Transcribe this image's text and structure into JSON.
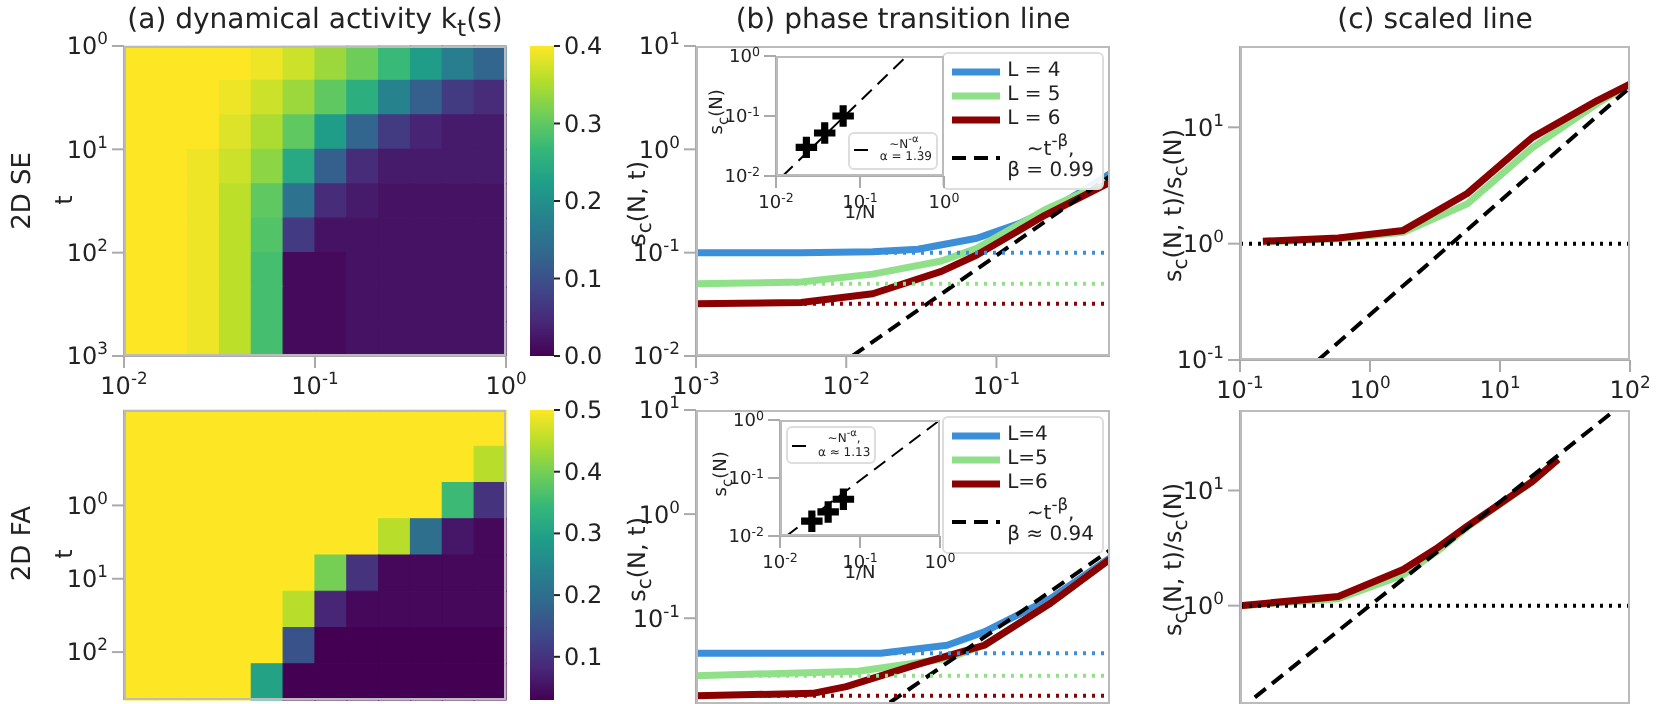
{
  "chart_data": [
    {
      "type": "heatmap",
      "title": "(a) dynamical activity k$_{t}$(s)",
      "ylabel": "t",
      "annotations": [
        "2D SE"
      ],
      "log": "xy",
      "xlim": [
        0.01,
        1
      ],
      "ylim": [
        1000,
        1
      ],
      "xticks": [
        {
          "value": 0.01,
          "label": "10$^{-2}$"
        },
        {
          "value": 0.1,
          "label": "10$^{-1}$"
        },
        {
          "value": 1,
          "label": "10$^{0}$"
        }
      ],
      "yticks": [
        {
          "value": 1,
          "label": "10$^{0}$"
        },
        {
          "value": 10,
          "label": "10$^{1}$"
        },
        {
          "value": 100,
          "label": "10$^{2}$"
        },
        {
          "value": 1000,
          "label": "10$^{3}$"
        }
      ],
      "cells": [
        [
          0.4,
          0.4,
          0.4,
          0.4,
          0.39,
          0.37,
          0.34,
          0.31,
          0.27,
          0.22,
          0.17,
          0.13
        ],
        [
          0.4,
          0.4,
          0.4,
          0.39,
          0.37,
          0.34,
          0.3,
          0.25,
          0.18,
          0.12,
          0.07,
          0.05
        ],
        [
          0.4,
          0.4,
          0.4,
          0.38,
          0.35,
          0.3,
          0.22,
          0.13,
          0.07,
          0.04,
          0.03,
          0.03
        ],
        [
          0.4,
          0.4,
          0.39,
          0.37,
          0.33,
          0.24,
          0.12,
          0.05,
          0.03,
          0.03,
          0.03,
          0.03
        ],
        [
          0.4,
          0.4,
          0.39,
          0.36,
          0.3,
          0.15,
          0.05,
          0.03,
          0.02,
          0.02,
          0.02,
          0.02
        ],
        [
          0.4,
          0.4,
          0.39,
          0.36,
          0.29,
          0.07,
          0.02,
          0.02,
          0.02,
          0.02,
          0.02,
          0.02
        ],
        [
          0.4,
          0.4,
          0.39,
          0.36,
          0.28,
          0.01,
          0.01,
          0.02,
          0.02,
          0.02,
          0.02,
          0.02
        ],
        [
          0.4,
          0.4,
          0.39,
          0.36,
          0.28,
          0.01,
          0.01,
          0.02,
          0.02,
          0.02,
          0.02,
          0.02
        ],
        [
          0.4,
          0.4,
          0.39,
          0.36,
          0.28,
          0.01,
          0.01,
          0.02,
          0.02,
          0.02,
          0.02,
          0.02
        ]
      ],
      "clim": [
        0,
        0.4
      ],
      "cticks": [
        {
          "value": 0,
          "label": "0.0"
        },
        0.1,
        0.2,
        0.3,
        0.4
      ]
    },
    {
      "type": "line",
      "title": "(b) phase transition line",
      "ylabel": "s$_{c}$(N, t)",
      "log": "xy",
      "xlim": [
        0.001,
        0.57
      ],
      "ylim": [
        0.01,
        10
      ],
      "xticks": [
        {
          "value": 0.001,
          "label": "10$^{-3}$"
        },
        {
          "value": 0.01,
          "label": "10$^{-2}$"
        },
        {
          "value": 0.1,
          "label": "10$^{-1}$"
        }
      ],
      "yticks": [
        {
          "value": 0.01,
          "label": "10$^{-2}$"
        },
        {
          "value": 0.1,
          "label": "10$^{-1}$"
        },
        {
          "value": 1,
          "label": "10$^{0}$"
        },
        {
          "value": 10,
          "label": "10$^{1}$"
        }
      ],
      "legend": "top right",
      "series": [
        {
          "name": "L = 4",
          "color": "#3b8fd9",
          "x": [
            0.001,
            0.005,
            0.015,
            0.03,
            0.074,
            0.14,
            0.25,
            0.4,
            0.57
          ],
          "values": [
            0.1,
            0.1,
            0.102,
            0.108,
            0.138,
            0.19,
            0.28,
            0.42,
            0.58
          ]
        },
        {
          "name": "L = 5",
          "color": "#90e08a",
          "x": [
            0.001,
            0.005,
            0.015,
            0.043,
            0.074,
            0.21,
            0.57
          ],
          "values": [
            0.05,
            0.052,
            0.062,
            0.083,
            0.11,
            0.26,
            0.5
          ]
        },
        {
          "name": "L = 6",
          "color": "#8b0000",
          "x": [
            0.001,
            0.005,
            0.015,
            0.043,
            0.074,
            0.21,
            0.57
          ],
          "values": [
            0.032,
            0.033,
            0.04,
            0.066,
            0.095,
            0.23,
            0.48
          ]
        },
        {
          "name": "~t$^{-β}$, β = 0.99",
          "color": "#000000",
          "line_style": "dashed",
          "x": [
            0.011,
            0.57
          ],
          "values": [
            0.01,
            0.55
          ]
        }
      ],
      "ref_lines": [
        {
          "axis": "y",
          "value": 0.1,
          "color": "#3b8fd9",
          "line_style": "dotted"
        },
        {
          "axis": "y",
          "value": 0.05,
          "color": "#90e08a",
          "line_style": "dotted"
        },
        {
          "axis": "y",
          "value": 0.032,
          "color": "#8b0000",
          "line_style": "dotted"
        }
      ]
    },
    {
      "type": "scatter",
      "xlabel": "1/N",
      "ylabel": "s$_{c}$(N)",
      "log": "xy",
      "xlim": [
        0.01,
        1
      ],
      "ylim": [
        0.01,
        1
      ],
      "legend": "bottom right",
      "xticks": [
        {
          "value": 0.01,
          "label": "10$^{-2}$"
        },
        {
          "value": 0.1,
          "label": "10$^{-1}$"
        },
        {
          "value": 1,
          "label": "10$^{0}$"
        }
      ],
      "yticks": [
        {
          "value": 0.01,
          "label": "10$^{-2}$"
        },
        {
          "value": 0.1,
          "label": "10$^{-1}$"
        },
        {
          "value": 1,
          "label": "10$^{0}$"
        }
      ],
      "series": [
        {
          "color": "#000000",
          "marker": "cross",
          "x": [
            0.023,
            0.038,
            0.063
          ],
          "values": [
            0.03,
            0.052,
            0.1
          ]
        },
        {
          "type": "line",
          "name": "~N$^{-α}$, α = 1.39",
          "color": "#000000",
          "line_style": "dashed",
          "x": [
            0.012,
            0.36
          ],
          "values": [
            0.01,
            1
          ]
        }
      ]
    },
    {
      "type": "line",
      "title": "(c) scaled line",
      "ylabel": "s$_{c}$(N, t)/s$_{c}$(N)",
      "log": "xy",
      "xlim": [
        0.1,
        100
      ],
      "ylim": [
        0.1,
        50
      ],
      "xticks": [
        {
          "value": 0.1,
          "label": "10$^{-1}$"
        },
        {
          "value": 1,
          "label": "10$^{0}$"
        },
        {
          "value": 10,
          "label": "10$^{1}$"
        },
        {
          "value": 100,
          "label": "10$^{2}$"
        }
      ],
      "yticks": [
        {
          "value": 0.1,
          "label": "10$^{-1}$"
        },
        {
          "value": 1,
          "label": "10$^{0}$"
        },
        {
          "value": 10,
          "label": "10$^{1}$"
        }
      ],
      "series": [
        {
          "color": "#90e08a",
          "x": [
            0.15,
            0.57,
            1.8,
            5.6,
            17.8,
            56,
            100
          ],
          "values": [
            1.03,
            1.1,
            1.25,
            2.2,
            6.7,
            16,
            23.5
          ]
        },
        {
          "color": "#8b0000",
          "x": [
            0.15,
            0.57,
            1.8,
            5.6,
            17.8,
            56,
            100
          ],
          "values": [
            1.05,
            1.12,
            1.3,
            2.7,
            8.2,
            17,
            23.5
          ]
        },
        {
          "color": "#000000",
          "line_style": "dashed",
          "x": [
            0.4,
            100
          ],
          "values": [
            0.1,
            22
          ]
        }
      ],
      "ref_lines": [
        {
          "axis": "y",
          "value": 1,
          "color": "#000000",
          "line_style": "dotted"
        }
      ]
    },
    {
      "type": "heatmap",
      "ylabel": "t",
      "annotations": [
        "2D FA"
      ],
      "log": "xy",
      "xlim": [
        0.01,
        1
      ],
      "ylim": [
        450,
        0.05
      ],
      "tick_labels": "y",
      "yticks": [
        {
          "value": 1,
          "label": "10$^{0}$"
        },
        {
          "value": 10,
          "label": "10$^{1}$"
        },
        {
          "value": 100,
          "label": "10$^{2}$"
        }
      ],
      "cells": [
        [
          0.5,
          0.5,
          0.5,
          0.5,
          0.5,
          0.5,
          0.5,
          0.5,
          0.5,
          0.5,
          0.5,
          0.5
        ],
        [
          0.5,
          0.5,
          0.5,
          0.5,
          0.5,
          0.5,
          0.5,
          0.5,
          0.5,
          0.5,
          0.5,
          0.45
        ],
        [
          0.5,
          0.5,
          0.5,
          0.5,
          0.5,
          0.5,
          0.5,
          0.5,
          0.5,
          0.5,
          0.35,
          0.1
        ],
        [
          0.5,
          0.5,
          0.5,
          0.5,
          0.5,
          0.5,
          0.5,
          0.5,
          0.45,
          0.2,
          0.06,
          0.04
        ],
        [
          0.5,
          0.5,
          0.5,
          0.5,
          0.5,
          0.5,
          0.4,
          0.1,
          0.04,
          0.04,
          0.04,
          0.04
        ],
        [
          0.5,
          0.5,
          0.5,
          0.5,
          0.5,
          0.45,
          0.08,
          0.04,
          0.04,
          0.04,
          0.04,
          0.04
        ],
        [
          0.5,
          0.5,
          0.5,
          0.5,
          0.5,
          0.15,
          0.03,
          0.03,
          0.03,
          0.03,
          0.03,
          0.03
        ],
        [
          0.5,
          0.5,
          0.5,
          0.5,
          0.3,
          0.03,
          0.03,
          0.03,
          0.03,
          0.03,
          0.03,
          0.03
        ]
      ],
      "clim": [
        0.03,
        0.5
      ],
      "cticks": [
        0.1,
        0.2,
        0.3,
        0.4,
        0.5
      ]
    },
    {
      "type": "line",
      "ylabel": "s$_{c}$(N, t)",
      "log": "xy",
      "xlim": [
        0.001,
        0.57
      ],
      "ylim": [
        0.015,
        10
      ],
      "tick_labels": "y",
      "yticks": [
        {
          "value": 0.1,
          "label": "10$^{-1}$"
        },
        {
          "value": 1,
          "label": "10$^{0}$"
        },
        {
          "value": 10,
          "label": "10$^{1}$"
        }
      ],
      "legend": "top right",
      "series": [
        {
          "name": "L=4",
          "color": "#3b8fd9",
          "x": [
            0.001,
            0.017,
            0.047,
            0.083,
            0.23,
            0.57
          ],
          "values": [
            0.046,
            0.046,
            0.055,
            0.074,
            0.155,
            0.38
          ]
        },
        {
          "name": "L=5",
          "color": "#90e08a",
          "x": [
            0.001,
            0.012,
            0.047,
            0.083,
            0.23,
            0.57
          ],
          "values": [
            0.028,
            0.031,
            0.041,
            0.055,
            0.14,
            0.37
          ]
        },
        {
          "name": "L=6",
          "color": "#8b0000",
          "x": [
            0.001,
            0.006,
            0.01,
            0.028,
            0.083,
            0.23,
            0.57
          ],
          "values": [
            0.018,
            0.019,
            0.022,
            0.035,
            0.055,
            0.14,
            0.37
          ]
        },
        {
          "name": "~t$^{-β}$, β ≈ 0.94",
          "color": "#000000",
          "line_style": "dashed",
          "x": [
            0.0195,
            0.57
          ],
          "values": [
            0.0155,
            0.45
          ]
        }
      ],
      "ref_lines": [
        {
          "axis": "y",
          "value": 0.046,
          "color": "#3b8fd9",
          "line_style": "dotted"
        },
        {
          "axis": "y",
          "value": 0.028,
          "color": "#90e08a",
          "line_style": "dotted"
        },
        {
          "axis": "y",
          "value": 0.018,
          "color": "#8b0000",
          "line_style": "dotted"
        }
      ]
    },
    {
      "type": "scatter",
      "xlabel": "1/N",
      "ylabel": "s$_{c}$(N)",
      "log": "xy",
      "xlim": [
        0.01,
        1
      ],
      "ylim": [
        0.01,
        1
      ],
      "legend": "top left",
      "xticks": [
        {
          "value": 0.01,
          "label": "10$^{-2}$"
        },
        {
          "value": 0.1,
          "label": "10$^{-1}$"
        },
        {
          "value": 1,
          "label": "10$^{0}$"
        }
      ],
      "yticks": [
        {
          "value": 0.01,
          "label": "10$^{-2}$"
        },
        {
          "value": 0.1,
          "label": "10$^{-1}$"
        },
        {
          "value": 1,
          "label": "10$^{0}$"
        }
      ],
      "series": [
        {
          "color": "#000000",
          "marker": "cross",
          "x": [
            0.025,
            0.04,
            0.062
          ],
          "values": [
            0.018,
            0.026,
            0.043
          ]
        },
        {
          "type": "line",
          "name": "~N$^{-α}$, α ≈ 1.13",
          "color": "#000000",
          "line_style": "dashed",
          "x": [
            0.012,
            1
          ],
          "values": [
            0.01,
            1
          ]
        }
      ]
    },
    {
      "type": "line",
      "ylabel": "s$_{c}$(N, t)/s$_{c}$(N)",
      "log": "xy",
      "xlim": [
        0.1,
        100
      ],
      "ylim": [
        0.14,
        50
      ],
      "tick_labels": "y",
      "yticks": [
        {
          "value": 1,
          "label": "10$^{0}$"
        },
        {
          "value": 10,
          "label": "10$^{1}$"
        }
      ],
      "series": [
        {
          "color": "#90e08a",
          "x": [
            0.1,
            0.57,
            1.8,
            3.2,
            5.6,
            17.8,
            28
          ],
          "values": [
            1.0,
            1.15,
            1.85,
            2.9,
            4.8,
            12,
            18.6
          ]
        },
        {
          "color": "#8b0000",
          "x": [
            0.1,
            0.57,
            1.8,
            3.2,
            5.6,
            17.8,
            28
          ],
          "values": [
            1.0,
            1.2,
            2.06,
            3.1,
            4.9,
            12,
            18.6
          ]
        },
        {
          "color": "#000000",
          "line_style": "dashed",
          "x": [
            0.13,
            75
          ],
          "values": [
            0.16,
            49
          ]
        }
      ],
      "ref_lines": [
        {
          "axis": "y",
          "value": 1,
          "color": "#000000",
          "line_style": "dotted"
        }
      ]
    }
  ]
}
